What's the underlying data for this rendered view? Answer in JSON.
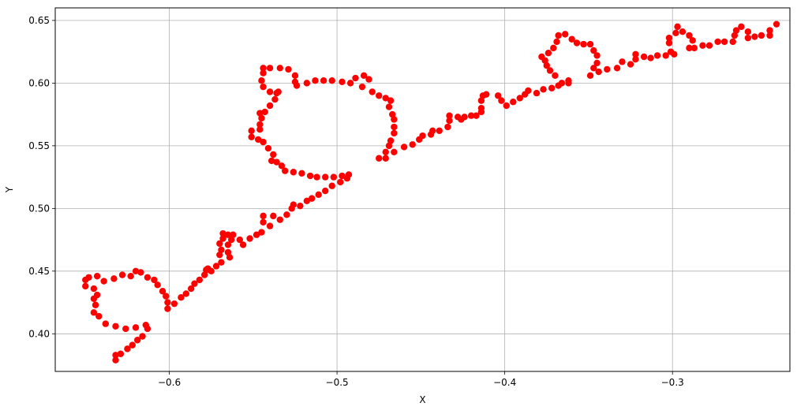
{
  "chart_data": {
    "type": "scatter",
    "title": "",
    "xlabel": "X",
    "ylabel": "Y",
    "xlim": [
      -0.668,
      -0.23
    ],
    "ylim": [
      0.37,
      0.66
    ],
    "grid": true,
    "marker_color": "#ff0000",
    "x_ticks": [
      -0.6,
      -0.5,
      -0.4,
      -0.3
    ],
    "x_tick_labels": [
      "−0.6",
      "−0.5",
      "−0.4",
      "−0.3"
    ],
    "y_ticks": [
      0.4,
      0.45,
      0.5,
      0.55,
      0.6,
      0.65
    ],
    "y_tick_labels": [
      "0.40",
      "0.45",
      "0.50",
      "0.55",
      "0.60",
      "0.65"
    ],
    "points": [
      [
        -0.632,
        0.379
      ],
      [
        -0.632,
        0.383
      ],
      [
        -0.629,
        0.384
      ],
      [
        -0.625,
        0.388
      ],
      [
        -0.622,
        0.391
      ],
      [
        -0.619,
        0.395
      ],
      [
        -0.616,
        0.398
      ],
      [
        -0.613,
        0.404
      ],
      [
        -0.614,
        0.407
      ],
      [
        -0.62,
        0.405
      ],
      [
        -0.626,
        0.404
      ],
      [
        -0.632,
        0.406
      ],
      [
        -0.638,
        0.408
      ],
      [
        -0.642,
        0.414
      ],
      [
        -0.645,
        0.417
      ],
      [
        -0.644,
        0.423
      ],
      [
        -0.645,
        0.428
      ],
      [
        -0.643,
        0.431
      ],
      [
        -0.645,
        0.436
      ],
      [
        -0.65,
        0.438
      ],
      [
        -0.65,
        0.443
      ],
      [
        -0.648,
        0.445
      ],
      [
        -0.643,
        0.446
      ],
      [
        -0.639,
        0.442
      ],
      [
        -0.633,
        0.444
      ],
      [
        -0.628,
        0.447
      ],
      [
        -0.623,
        0.446
      ],
      [
        -0.62,
        0.45
      ],
      [
        -0.617,
        0.449
      ],
      [
        -0.613,
        0.445
      ],
      [
        -0.609,
        0.443
      ],
      [
        -0.607,
        0.439
      ],
      [
        -0.604,
        0.434
      ],
      [
        -0.602,
        0.43
      ],
      [
        -0.601,
        0.425
      ],
      [
        -0.601,
        0.42
      ],
      [
        -0.597,
        0.424
      ],
      [
        -0.593,
        0.429
      ],
      [
        -0.59,
        0.432
      ],
      [
        -0.587,
        0.436
      ],
      [
        -0.585,
        0.44
      ],
      [
        -0.582,
        0.443
      ],
      [
        -0.579,
        0.447
      ],
      [
        -0.578,
        0.451
      ],
      [
        -0.577,
        0.452
      ],
      [
        -0.575,
        0.45
      ],
      [
        -0.572,
        0.454
      ],
      [
        -0.569,
        0.457
      ],
      [
        -0.57,
        0.463
      ],
      [
        -0.569,
        0.467
      ],
      [
        -0.57,
        0.472
      ],
      [
        -0.568,
        0.476
      ],
      [
        -0.568,
        0.48
      ],
      [
        -0.565,
        0.479
      ],
      [
        -0.562,
        0.479
      ],
      [
        -0.563,
        0.475
      ],
      [
        -0.565,
        0.471
      ],
      [
        -0.565,
        0.465
      ],
      [
        -0.564,
        0.461
      ],
      [
        -0.558,
        0.475
      ],
      [
        -0.556,
        0.471
      ],
      [
        -0.552,
        0.476
      ],
      [
        -0.548,
        0.479
      ],
      [
        -0.545,
        0.481
      ],
      [
        -0.544,
        0.489
      ],
      [
        -0.544,
        0.494
      ],
      [
        -0.54,
        0.486
      ],
      [
        -0.538,
        0.494
      ],
      [
        -0.534,
        0.491
      ],
      [
        -0.53,
        0.495
      ],
      [
        -0.527,
        0.5
      ],
      [
        -0.526,
        0.503
      ],
      [
        -0.522,
        0.502
      ],
      [
        -0.518,
        0.506
      ],
      [
        -0.515,
        0.508
      ],
      [
        -0.511,
        0.511
      ],
      [
        -0.507,
        0.514
      ],
      [
        -0.503,
        0.518
      ],
      [
        -0.498,
        0.521
      ],
      [
        -0.494,
        0.524
      ],
      [
        -0.493,
        0.527
      ],
      [
        -0.497,
        0.526
      ],
      [
        -0.502,
        0.525
      ],
      [
        -0.507,
        0.525
      ],
      [
        -0.512,
        0.525
      ],
      [
        -0.516,
        0.526
      ],
      [
        -0.521,
        0.528
      ],
      [
        -0.526,
        0.529
      ],
      [
        -0.531,
        0.53
      ],
      [
        -0.533,
        0.534
      ],
      [
        -0.536,
        0.537
      ],
      [
        -0.539,
        0.538
      ],
      [
        -0.538,
        0.543
      ],
      [
        -0.541,
        0.548
      ],
      [
        -0.544,
        0.553
      ],
      [
        -0.547,
        0.555
      ],
      [
        -0.551,
        0.557
      ],
      [
        -0.551,
        0.562
      ],
      [
        -0.546,
        0.563
      ],
      [
        -0.546,
        0.567
      ],
      [
        -0.545,
        0.572
      ],
      [
        -0.546,
        0.576
      ],
      [
        -0.543,
        0.577
      ],
      [
        -0.54,
        0.582
      ],
      [
        -0.537,
        0.587
      ],
      [
        -0.536,
        0.592
      ],
      [
        -0.535,
        0.593
      ],
      [
        -0.54,
        0.593
      ],
      [
        -0.544,
        0.597
      ],
      [
        -0.545,
        0.602
      ],
      [
        -0.544,
        0.608
      ],
      [
        -0.544,
        0.612
      ],
      [
        -0.54,
        0.612
      ],
      [
        -0.534,
        0.612
      ],
      [
        -0.529,
        0.611
      ],
      [
        -0.525,
        0.606
      ],
      [
        -0.525,
        0.601
      ],
      [
        -0.524,
        0.598
      ],
      [
        -0.518,
        0.6
      ],
      [
        -0.513,
        0.602
      ],
      [
        -0.508,
        0.602
      ],
      [
        -0.503,
        0.602
      ],
      [
        -0.497,
        0.601
      ],
      [
        -0.492,
        0.6
      ],
      [
        -0.489,
        0.604
      ],
      [
        -0.484,
        0.606
      ],
      [
        -0.481,
        0.603
      ],
      [
        -0.485,
        0.597
      ],
      [
        -0.479,
        0.593
      ],
      [
        -0.475,
        0.59
      ],
      [
        -0.471,
        0.588
      ],
      [
        -0.468,
        0.586
      ],
      [
        -0.469,
        0.581
      ],
      [
        -0.467,
        0.575
      ],
      [
        -0.466,
        0.571
      ],
      [
        -0.466,
        0.565
      ],
      [
        -0.466,
        0.56
      ],
      [
        -0.468,
        0.554
      ],
      [
        -0.469,
        0.55
      ],
      [
        -0.471,
        0.545
      ],
      [
        -0.471,
        0.54
      ],
      [
        -0.475,
        0.54
      ],
      [
        -0.466,
        0.545
      ],
      [
        -0.46,
        0.549
      ],
      [
        -0.455,
        0.551
      ],
      [
        -0.451,
        0.555
      ],
      [
        -0.449,
        0.558
      ],
      [
        -0.444,
        0.559
      ],
      [
        -0.443,
        0.562
      ],
      [
        -0.439,
        0.562
      ],
      [
        -0.434,
        0.565
      ],
      [
        -0.433,
        0.57
      ],
      [
        -0.433,
        0.574
      ],
      [
        -0.428,
        0.573
      ],
      [
        -0.426,
        0.571
      ],
      [
        -0.424,
        0.573
      ],
      [
        -0.42,
        0.574
      ],
      [
        -0.417,
        0.574
      ],
      [
        -0.414,
        0.577
      ],
      [
        -0.414,
        0.58
      ],
      [
        -0.414,
        0.586
      ],
      [
        -0.413,
        0.59
      ],
      [
        -0.411,
        0.591
      ],
      [
        -0.404,
        0.59
      ],
      [
        -0.402,
        0.586
      ],
      [
        -0.399,
        0.582
      ],
      [
        -0.395,
        0.585
      ],
      [
        -0.391,
        0.588
      ],
      [
        -0.388,
        0.591
      ],
      [
        -0.386,
        0.594
      ],
      [
        -0.381,
        0.592
      ],
      [
        -0.377,
        0.595
      ],
      [
        -0.372,
        0.596
      ],
      [
        -0.368,
        0.598
      ],
      [
        -0.366,
        0.6
      ],
      [
        -0.362,
        0.6
      ],
      [
        -0.362,
        0.602
      ],
      [
        -0.37,
        0.606
      ],
      [
        -0.373,
        0.61
      ],
      [
        -0.375,
        0.614
      ],
      [
        -0.376,
        0.618
      ],
      [
        -0.378,
        0.621
      ],
      [
        -0.374,
        0.624
      ],
      [
        -0.371,
        0.628
      ],
      [
        -0.369,
        0.633
      ],
      [
        -0.368,
        0.638
      ],
      [
        -0.364,
        0.639
      ],
      [
        -0.36,
        0.635
      ],
      [
        -0.357,
        0.632
      ],
      [
        -0.353,
        0.631
      ],
      [
        -0.349,
        0.631
      ],
      [
        -0.347,
        0.626
      ],
      [
        -0.345,
        0.622
      ],
      [
        -0.345,
        0.616
      ],
      [
        -0.347,
        0.612
      ],
      [
        -0.344,
        0.609
      ],
      [
        -0.349,
        0.606
      ],
      [
        -0.339,
        0.611
      ],
      [
        -0.333,
        0.612
      ],
      [
        -0.33,
        0.617
      ],
      [
        -0.325,
        0.615
      ],
      [
        -0.322,
        0.619
      ],
      [
        -0.322,
        0.623
      ],
      [
        -0.317,
        0.621
      ],
      [
        -0.313,
        0.62
      ],
      [
        -0.309,
        0.622
      ],
      [
        -0.304,
        0.622
      ],
      [
        -0.301,
        0.625
      ],
      [
        -0.299,
        0.623
      ],
      [
        -0.302,
        0.632
      ],
      [
        -0.302,
        0.636
      ],
      [
        -0.298,
        0.64
      ],
      [
        -0.297,
        0.645
      ],
      [
        -0.294,
        0.641
      ],
      [
        -0.29,
        0.638
      ],
      [
        -0.288,
        0.634
      ],
      [
        -0.29,
        0.628
      ],
      [
        -0.287,
        0.628
      ],
      [
        -0.282,
        0.63
      ],
      [
        -0.278,
        0.63
      ],
      [
        -0.273,
        0.633
      ],
      [
        -0.269,
        0.633
      ],
      [
        -0.264,
        0.633
      ],
      [
        -0.263,
        0.638
      ],
      [
        -0.262,
        0.642
      ],
      [
        -0.259,
        0.645
      ],
      [
        -0.255,
        0.641
      ],
      [
        -0.255,
        0.636
      ],
      [
        -0.251,
        0.637
      ],
      [
        -0.247,
        0.638
      ],
      [
        -0.242,
        0.638
      ],
      [
        -0.242,
        0.642
      ],
      [
        -0.238,
        0.647
      ]
    ]
  }
}
